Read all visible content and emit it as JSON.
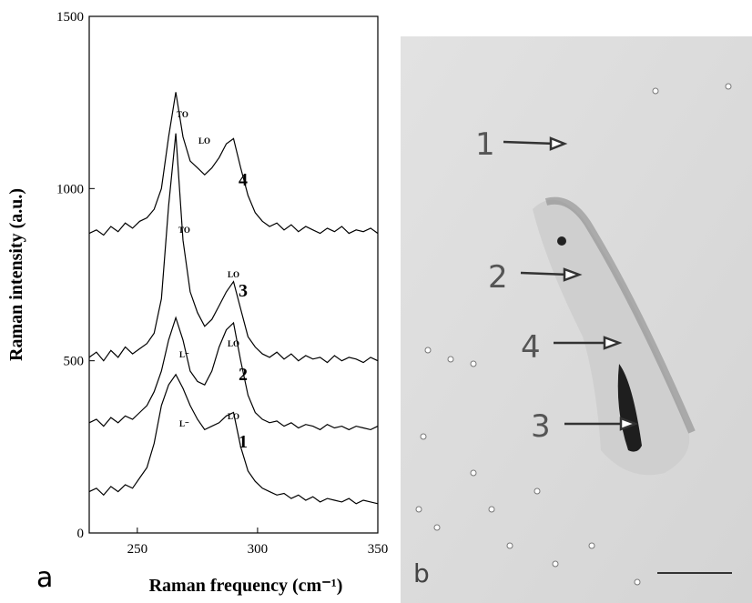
{
  "chart_data": {
    "type": "line",
    "y_label": "Raman intensity (a.u.)",
    "x_label": "Raman frequency (cm⁻¹)",
    "x": [
      230,
      233,
      236,
      239,
      242,
      245,
      248,
      251,
      254,
      257,
      260,
      263,
      266,
      269,
      272,
      275,
      278,
      281,
      284,
      287,
      290,
      293,
      296,
      299,
      302,
      305,
      308,
      311,
      314,
      317,
      320,
      323,
      326,
      329,
      332,
      335,
      338,
      341,
      344,
      347,
      350
    ],
    "series": [
      {
        "name": "1",
        "color": "#000000",
        "values": [
          120,
          130,
          110,
          135,
          120,
          140,
          130,
          160,
          190,
          260,
          370,
          430,
          460,
          420,
          370,
          330,
          300,
          310,
          320,
          340,
          350,
          250,
          180,
          150,
          130,
          120,
          110,
          115,
          100,
          110,
          95,
          105,
          90,
          100,
          95,
          90,
          100,
          85,
          95,
          90,
          85
        ]
      },
      {
        "name": "2",
        "color": "#000000",
        "values": [
          320,
          330,
          310,
          335,
          320,
          340,
          330,
          350,
          370,
          410,
          470,
          560,
          625,
          560,
          470,
          440,
          430,
          470,
          540,
          590,
          610,
          500,
          400,
          350,
          330,
          320,
          325,
          310,
          320,
          305,
          315,
          310,
          300,
          315,
          305,
          310,
          300,
          310,
          305,
          300,
          310
        ]
      },
      {
        "name": "3",
        "color": "#000000",
        "values": [
          510,
          525,
          500,
          530,
          510,
          540,
          520,
          535,
          550,
          580,
          680,
          950,
          1160,
          850,
          700,
          640,
          600,
          620,
          660,
          700,
          730,
          650,
          570,
          540,
          520,
          510,
          525,
          505,
          520,
          500,
          515,
          505,
          510,
          495,
          515,
          500,
          510,
          505,
          495,
          510,
          500
        ]
      },
      {
        "name": "4",
        "color": "#000000",
        "values": [
          870,
          880,
          865,
          890,
          875,
          900,
          885,
          905,
          915,
          940,
          1000,
          1150,
          1280,
          1150,
          1080,
          1060,
          1040,
          1060,
          1090,
          1130,
          1145,
          1060,
          980,
          930,
          905,
          890,
          900,
          880,
          895,
          875,
          890,
          880,
          870,
          885,
          875,
          890,
          870,
          880,
          875,
          885,
          870
        ]
      }
    ],
    "annotations": [
      "TO",
      "LO",
      "TO",
      "LO",
      "L⁻",
      "LO",
      "L⁻",
      "LO"
    ],
    "xlim": [
      230,
      350
    ],
    "ylim": [
      0,
      1500
    ],
    "xticks": [
      250,
      300,
      350
    ],
    "yticks": [
      0,
      500,
      1000,
      1500
    ],
    "panel_label": "a"
  },
  "image_panel": {
    "panel_label": "b",
    "labels": [
      "1",
      "2",
      "4",
      "3"
    ]
  }
}
